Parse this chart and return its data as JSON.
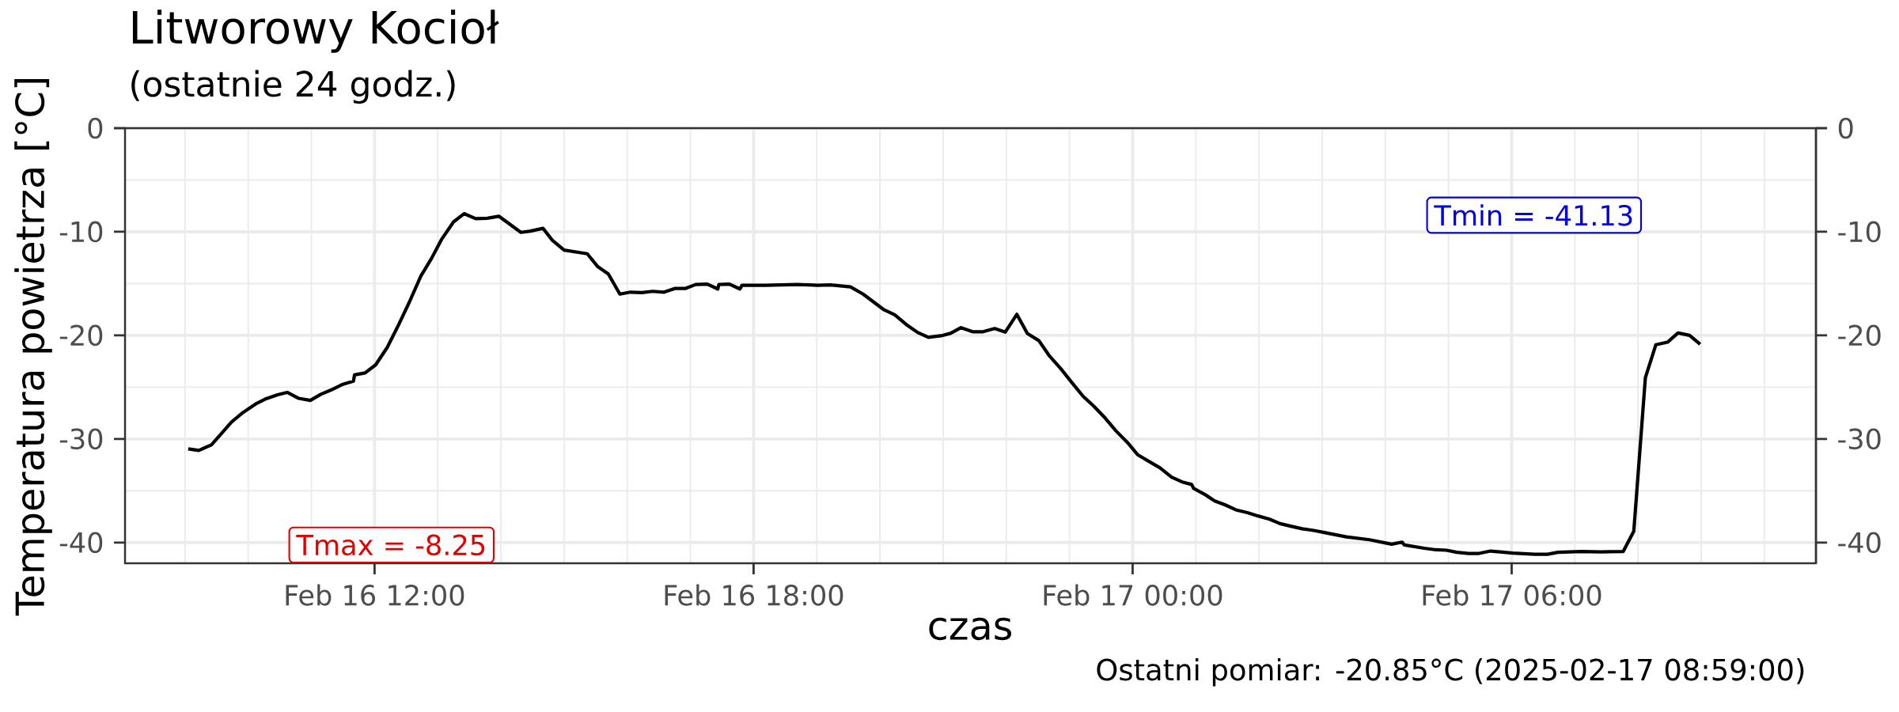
{
  "chart_data": {
    "type": "line",
    "title": "Litworowy Kocioł",
    "subtitle": "(ostatnie 24 godz.)",
    "xlabel": "czas",
    "ylabel": "Temperatura powietrza [°C]",
    "x": [
      "2025-02-16T09:03",
      "2025-02-16T09:13",
      "2025-02-16T09:25",
      "2025-02-16T09:34",
      "2025-02-16T09:44",
      "2025-02-16T09:55",
      "2025-02-16T10:07",
      "2025-02-16T10:16",
      "2025-02-16T10:28",
      "2025-02-16T10:37",
      "2025-02-16T10:48",
      "2025-02-16T10:59",
      "2025-02-16T11:09",
      "2025-02-16T11:19",
      "2025-02-16T11:30",
      "2025-02-16T11:40",
      "2025-02-16T11:41",
      "2025-02-16T11:51",
      "2025-02-16T12:01",
      "2025-02-16T12:12",
      "2025-02-16T12:23",
      "2025-02-16T12:33",
      "2025-02-16T12:44",
      "2025-02-16T12:54",
      "2025-02-16T13:04",
      "2025-02-16T13:15",
      "2025-02-16T13:25",
      "2025-02-16T13:36",
      "2025-02-16T13:47",
      "2025-02-16T13:58",
      "2025-02-16T14:07",
      "2025-02-16T14:19",
      "2025-02-16T14:28",
      "2025-02-16T14:40",
      "2025-02-16T14:49",
      "2025-02-16T15:00",
      "2025-02-16T15:22",
      "2025-02-16T15:32",
      "2025-02-16T15:42",
      "2025-02-16T15:53",
      "2025-02-16T16:03",
      "2025-02-16T16:14",
      "2025-02-16T16:24",
      "2025-02-16T16:35",
      "2025-02-16T16:45",
      "2025-02-16T16:55",
      "2025-02-16T17:05",
      "2025-02-16T17:16",
      "2025-02-16T17:26",
      "2025-02-16T17:27",
      "2025-02-16T17:37",
      "2025-02-16T17:47",
      "2025-02-16T17:49",
      "2025-02-16T18:11",
      "2025-02-16T18:42",
      "2025-02-16T19:01",
      "2025-02-16T19:13",
      "2025-02-16T19:32",
      "2025-02-16T19:44",
      "2025-02-16T20:04",
      "2025-02-16T20:14",
      "2025-02-16T20:25",
      "2025-02-16T20:36",
      "2025-02-16T20:46",
      "2025-02-16T20:58",
      "2025-02-16T21:07",
      "2025-02-16T21:17",
      "2025-02-16T21:28",
      "2025-02-16T21:38",
      "2025-02-16T21:49",
      "2025-02-16T21:59",
      "2025-02-16T22:10",
      "2025-02-16T22:20",
      "2025-02-16T22:31",
      "2025-02-16T22:41",
      "2025-02-16T22:52",
      "2025-02-16T23:02",
      "2025-02-16T23:13",
      "2025-02-16T23:23",
      "2025-02-16T23:34",
      "2025-02-16T23:44",
      "2025-02-16T23:55",
      "2025-02-17T00:05",
      "2025-02-17T00:16",
      "2025-02-17T00:26",
      "2025-02-17T00:37",
      "2025-02-17T00:47",
      "2025-02-17T00:56",
      "2025-02-17T00:58",
      "2025-02-17T01:08",
      "2025-02-17T01:18",
      "2025-02-17T01:28",
      "2025-02-17T01:38",
      "2025-02-17T01:49",
      "2025-02-17T01:59",
      "2025-02-17T02:10",
      "2025-02-17T02:20",
      "2025-02-17T02:31",
      "2025-02-17T02:41",
      "2025-02-17T02:52",
      "2025-02-17T03:02",
      "2025-02-17T03:23",
      "2025-02-17T03:45",
      "2025-02-17T04:06",
      "2025-02-17T04:16",
      "2025-02-17T04:18",
      "2025-02-17T04:37",
      "2025-02-17T04:48",
      "2025-02-17T04:58",
      "2025-02-17T05:08",
      "2025-02-17T05:19",
      "2025-02-17T05:29",
      "2025-02-17T05:40",
      "2025-02-17T05:49",
      "2025-02-17T06:01",
      "2025-02-17T06:22",
      "2025-02-17T06:34",
      "2025-02-17T06:44",
      "2025-02-17T07:06",
      "2025-02-17T07:25",
      "2025-02-17T07:46",
      "2025-02-17T07:56",
      "2025-02-17T08:07",
      "2025-02-17T08:17",
      "2025-02-17T08:28",
      "2025-02-17T08:38",
      "2025-02-17T08:49",
      "2025-02-17T08:59"
    ],
    "series": [
      {
        "color": "#000000",
        "values": [
          -30.95,
          -31.11,
          -30.57,
          -29.55,
          -28.38,
          -27.45,
          -26.63,
          -26.16,
          -25.73,
          -25.5,
          -26.08,
          -26.28,
          -25.69,
          -25.26,
          -24.72,
          -24.41,
          -23.82,
          -23.63,
          -22.85,
          -21.17,
          -18.95,
          -16.8,
          -14.27,
          -12.59,
          -10.68,
          -9.05,
          -8.25,
          -8.73,
          -8.69,
          -8.5,
          -9.16,
          -10.06,
          -9.94,
          -9.67,
          -10.84,
          -11.77,
          -12.12,
          -13.37,
          -14.07,
          -16.02,
          -15.83,
          -15.87,
          -15.75,
          -15.83,
          -15.48,
          -15.48,
          -15.09,
          -15.05,
          -15.52,
          -15.09,
          -15.05,
          -15.52,
          -15.17,
          -15.17,
          -15.09,
          -15.17,
          -15.13,
          -15.32,
          -16.02,
          -17.54,
          -18.01,
          -18.95,
          -19.73,
          -20.19,
          -20.04,
          -19.81,
          -19.26,
          -19.65,
          -19.65,
          -19.34,
          -19.69,
          -17.97,
          -19.81,
          -20.51,
          -21.99,
          -23.24,
          -24.52,
          -25.89,
          -26.82,
          -27.99,
          -29.2,
          -30.33,
          -31.54,
          -32.2,
          -32.79,
          -33.68,
          -34.15,
          -34.39,
          -34.78,
          -35.32,
          -35.98,
          -36.37,
          -36.84,
          -37.11,
          -37.43,
          -37.74,
          -38.17,
          -38.44,
          -38.67,
          -38.83,
          -39.03,
          -39.45,
          -39.73,
          -40.16,
          -39.96,
          -40.23,
          -40.55,
          -40.7,
          -40.74,
          -40.94,
          -41.05,
          -41.05,
          -40.82,
          -40.9,
          -41.01,
          -41.13,
          -41.13,
          -40.94,
          -40.86,
          -40.9,
          -40.86,
          -38.91,
          -24.09,
          -20.9,
          -20.66,
          -19.77,
          -20.0,
          -20.85
        ]
      }
    ],
    "xlim": [
      "2025-02-16T08:03",
      "2025-02-17T10:49"
    ],
    "xticks": [
      {
        "value": "2025-02-16T12:00",
        "label": "Feb 16 12:00"
      },
      {
        "value": "2025-02-16T18:00",
        "label": "Feb 16 18:00"
      },
      {
        "value": "2025-02-17T00:00",
        "label": "Feb 17 00:00"
      },
      {
        "value": "2025-02-17T06:00",
        "label": "Feb 17 06:00"
      }
    ],
    "ylim": [
      -42,
      0
    ],
    "yticks": [
      -40,
      -30,
      -20,
      -10,
      0
    ],
    "y2lim": [
      -42,
      0
    ],
    "y2ticks": [
      -40,
      -30,
      -20,
      -10,
      0
    ],
    "grid": true,
    "annotations": [
      "Tmax = -8.25",
      "Tmin = -41.13",
      "Ostatni pomiar: -20.85°C (2025-02-17 08:59:00)"
    ]
  }
}
